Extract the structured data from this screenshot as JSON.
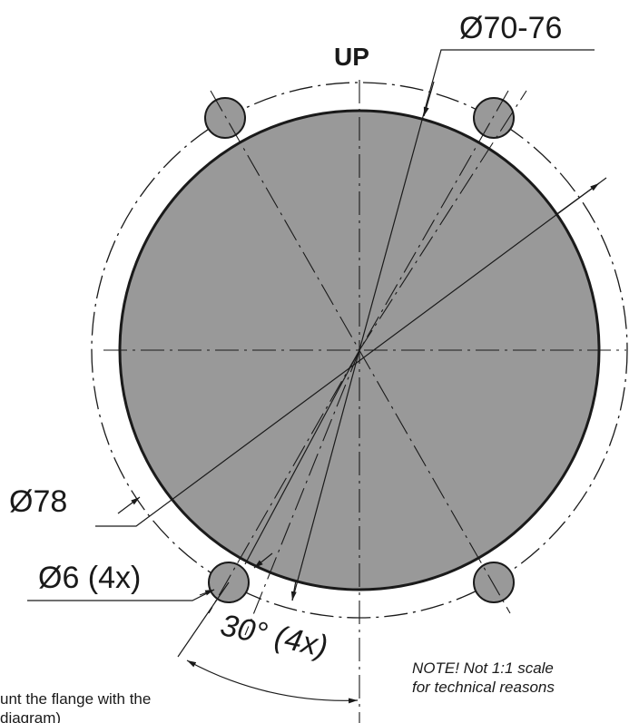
{
  "labels": {
    "up": "UP",
    "outer_dia": "Ø70-76",
    "pcd": "Ø78",
    "hole": "Ø6 (4x)",
    "angle": "30° (4x)",
    "note_line1": "NOTE!  Not 1:1 scale",
    "note_line2": "for technical reasons",
    "cut_line1": "unt the flange with the",
    "cut_line2": "diagram)"
  },
  "colors": {
    "fill": "#999999",
    "stroke": "#1a1a1a",
    "background": "#ffffff"
  }
}
